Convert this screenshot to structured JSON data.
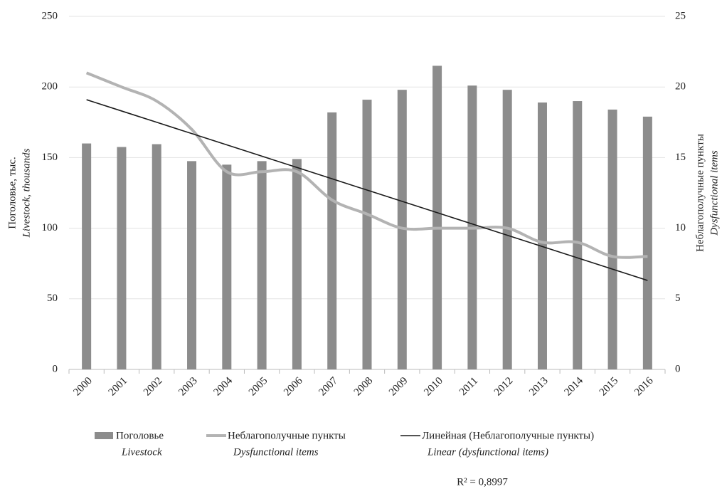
{
  "chart_data": {
    "type": "bar-line",
    "categories": [
      "2000",
      "2001",
      "2002",
      "2003",
      "2004",
      "2005",
      "2006",
      "2007",
      "2008",
      "2009",
      "2010",
      "2011",
      "2012",
      "2013",
      "2014",
      "2015",
      "2016"
    ],
    "series": [
      {
        "name": "Поголовье",
        "name_en": "Livestock",
        "type": "bar",
        "color": "#8c8c8c",
        "values": [
          160,
          157.5,
          159.5,
          147.5,
          145,
          147.5,
          149,
          182,
          191,
          198,
          215,
          201,
          198,
          189,
          190,
          184,
          179
        ]
      },
      {
        "name": "Неблагополучные пункты",
        "name_en": "Dysfunctional items",
        "type": "line",
        "smooth": true,
        "axis": "y2",
        "color": "#b3b3b3",
        "values": [
          21,
          20,
          19,
          17,
          14,
          14,
          14,
          12,
          11,
          10,
          10,
          10,
          10,
          9,
          9,
          8,
          8
        ]
      },
      {
        "name": "Линейная (Неблагополучные пункты)",
        "name_en": "Linear (dysfunctional items)",
        "type": "line",
        "axis": "y2",
        "color": "#1a1a1a",
        "values": [
          19.1,
          18.3,
          17.5,
          16.7,
          15.9,
          15.1,
          14.3,
          13.5,
          12.7,
          11.9,
          11.1,
          10.3,
          9.5,
          8.7,
          7.9,
          7.1,
          6.3
        ]
      }
    ],
    "y_label": [
      "Поголовье, тыс.",
      "Livestock, thousands"
    ],
    "y2_label": [
      "Неблагополучные пункты",
      "Dysfunctional items"
    ],
    "ylim": [
      0,
      250
    ],
    "yticks": [
      0,
      50,
      100,
      150,
      200,
      250
    ],
    "y2lim": [
      0,
      25
    ],
    "y2ticks": [
      0,
      5,
      10,
      15,
      20,
      25
    ],
    "grid": true,
    "legend": "bottom",
    "annotation": "R² = 0,8997"
  }
}
